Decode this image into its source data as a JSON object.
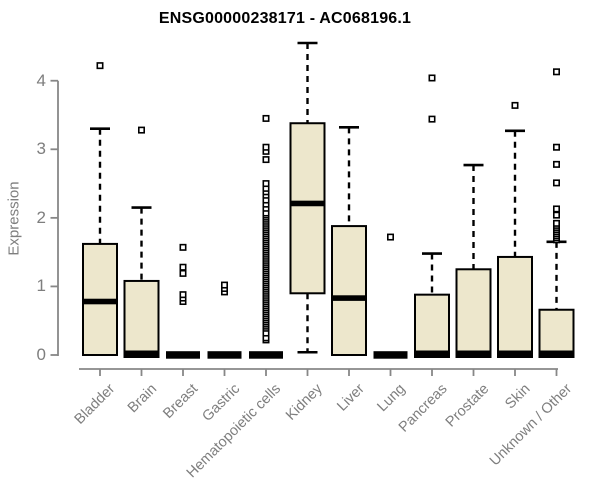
{
  "colors": {
    "box_fill": "#ede7cc",
    "box_stroke": "#000000",
    "median": "#000000",
    "outlier_stroke": "#000000",
    "axis": "#878787",
    "tick_text": "#7e7e7e",
    "title_text": "#000000"
  },
  "chart_data": {
    "type": "boxplot",
    "title": "ENSG00000238171 - AC068196.1",
    "xlabel": "",
    "ylabel": "Expression",
    "ylim": [
      0,
      4.6
    ],
    "yticks": [
      0,
      1,
      2,
      3,
      4
    ],
    "grid": false,
    "legend": false,
    "categories": [
      "Bladder",
      "Brain",
      "Breast",
      "Gastric",
      "Hematopoietic cells",
      "Kidney",
      "Liver",
      "Lung",
      "Pancreas",
      "Prostate",
      "Skin",
      "Unknown / Other"
    ],
    "boxes": [
      {
        "label": "Bladder",
        "low": 0,
        "q1": 0,
        "median": 0.78,
        "q3": 1.62,
        "high": 3.3,
        "outliers": [
          4.22
        ]
      },
      {
        "label": "Brain",
        "low": 0,
        "q1": 0,
        "median": 0.02,
        "q3": 1.08,
        "high": 2.15,
        "outliers": [
          3.28
        ]
      },
      {
        "label": "Breast",
        "low": 0,
        "q1": 0,
        "median": 0.02,
        "q3": 0,
        "high": 0,
        "outliers": [
          0.78,
          0.83,
          0.88,
          1.19,
          1.28,
          1.57
        ]
      },
      {
        "label": "Gastric",
        "low": 0,
        "q1": 0,
        "median": 0.02,
        "q3": 0,
        "high": 0,
        "outliers": [
          0.92,
          0.97,
          1.02
        ]
      },
      {
        "label": "Hematopoietic cells",
        "low": 0,
        "q1": 0,
        "median": 0.02,
        "q3": 0,
        "high": 0,
        "outliers": [
          0.22,
          0.25,
          0.32,
          0.39,
          0.42,
          0.45,
          0.48,
          0.51,
          0.54,
          0.57,
          0.6,
          0.63,
          0.66,
          0.69,
          0.72,
          0.75,
          0.78,
          0.81,
          0.84,
          0.87,
          0.9,
          0.93,
          0.96,
          0.99,
          1.02,
          1.05,
          1.08,
          1.11,
          1.14,
          1.17,
          1.2,
          1.23,
          1.26,
          1.29,
          1.32,
          1.35,
          1.38,
          1.41,
          1.44,
          1.47,
          1.5,
          1.53,
          1.56,
          1.59,
          1.62,
          1.65,
          1.68,
          1.71,
          1.74,
          1.77,
          1.8,
          1.83,
          1.86,
          1.89,
          1.92,
          1.95,
          1.98,
          2.01,
          2.04,
          2.07,
          2.14,
          2.2,
          2.26,
          2.33,
          2.38,
          2.43,
          2.5,
          2.85,
          2.97,
          3.03,
          3.45
        ]
      },
      {
        "label": "Kidney",
        "low": 0.04,
        "q1": 0.9,
        "median": 2.21,
        "q3": 3.38,
        "high": 4.55,
        "outliers": []
      },
      {
        "label": "Liver",
        "low": 0,
        "q1": 0,
        "median": 0.83,
        "q3": 1.88,
        "high": 3.32,
        "outliers": []
      },
      {
        "label": "Lung",
        "low": 0,
        "q1": 0,
        "median": 0.02,
        "q3": 0,
        "high": 0,
        "outliers": [
          1.72
        ]
      },
      {
        "label": "Pancreas",
        "low": 0,
        "q1": 0,
        "median": 0.02,
        "q3": 0.88,
        "high": 1.48,
        "outliers": [
          3.44,
          4.04
        ]
      },
      {
        "label": "Prostate",
        "low": 0,
        "q1": 0,
        "median": 0.02,
        "q3": 1.25,
        "high": 2.77,
        "outliers": []
      },
      {
        "label": "Skin",
        "low": 0,
        "q1": 0,
        "median": 0.02,
        "q3": 1.43,
        "high": 3.27,
        "outliers": [
          3.64
        ]
      },
      {
        "label": "Unknown / Other",
        "low": 0,
        "q1": 0,
        "median": 0.02,
        "q3": 0.66,
        "high": 1.65,
        "outliers": [
          1.68,
          1.71,
          1.74,
          1.77,
          1.8,
          1.83,
          1.86,
          1.89,
          1.92,
          2.04,
          2.13,
          2.51,
          2.78,
          3.03,
          4.13
        ]
      }
    ]
  }
}
